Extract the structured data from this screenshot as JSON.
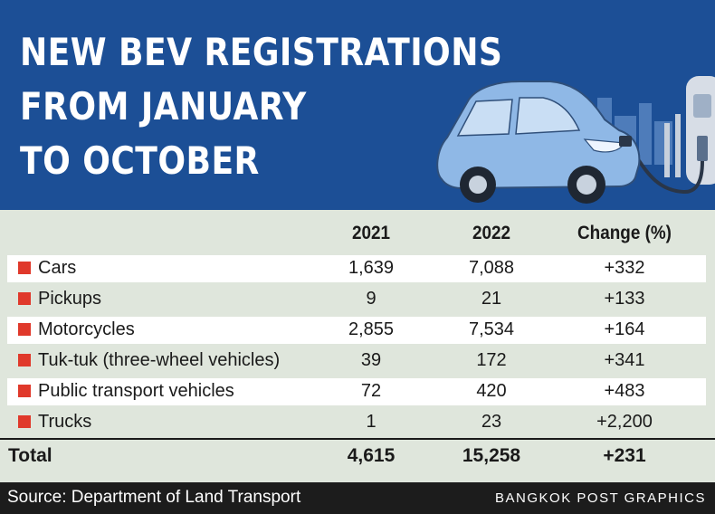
{
  "header": {
    "title_lines": [
      "NEW BEV REGISTRATIONS",
      "FROM JANUARY",
      "TO OCTOBER"
    ]
  },
  "colors": {
    "header_bg": "#1c4f96",
    "table_bg": "#dfe6dc",
    "swatch": "#e0392b",
    "footer_bg": "#1c1c1c"
  },
  "chart_data": {
    "type": "table",
    "title": "NEW BEV REGISTRATIONS FROM JANUARY TO OCTOBER",
    "columns": [
      "2021",
      "2022",
      "Change (%)"
    ],
    "rows": [
      {
        "category": "Cars",
        "y2021": "1,639",
        "y2022": "7,088",
        "change": "+332"
      },
      {
        "category": "Pickups",
        "y2021": "9",
        "y2022": "21",
        "change": "+133"
      },
      {
        "category": "Motorcycles",
        "y2021": "2,855",
        "y2022": "7,534",
        "change": "+164"
      },
      {
        "category": "Tuk-tuk (three-wheel vehicles)",
        "y2021": "39",
        "y2022": "172",
        "change": "+341"
      },
      {
        "category": "Public transport vehicles",
        "y2021": "72",
        "y2022": "420",
        "change": "+483"
      },
      {
        "category": "Trucks",
        "y2021": "1",
        "y2022": "23",
        "change": "+2,200"
      }
    ],
    "total": {
      "label": "Total",
      "y2021": "4,615",
      "y2022": "15,258",
      "change": "+231"
    }
  },
  "footer": {
    "source": "Source: Department of Land Transport",
    "credit": "BANGKOK POST GRAPHICS"
  }
}
